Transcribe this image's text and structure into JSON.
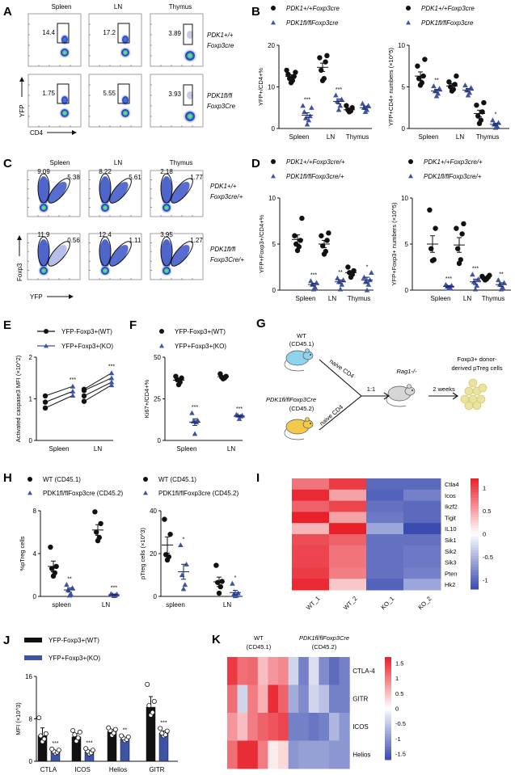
{
  "colors": {
    "wt": "#111111",
    "ko": "#3d54a6",
    "heat_high": "#e8202a",
    "heat_mid": "#ffffff",
    "heat_low": "#3b4cb0",
    "cell": "#e9e3a0",
    "mouse_wt": "#8fd3ec",
    "mouse_ko": "#f2c94a",
    "mouse_rag": "#d6d6d6"
  },
  "panels": {
    "A": {
      "letter": "A",
      "columns": [
        "Spleen",
        "LN",
        "Thymus"
      ],
      "rows": [
        {
          "genotype_line1": "PDK1+/+",
          "genotype_line2": "Foxp3cre",
          "values": [
            "14.4",
            "17.2",
            "3.89"
          ]
        },
        {
          "genotype_line1": "PDK1fl/fl",
          "genotype_line2": "Foxp3Cre",
          "values": [
            "1.75",
            "5.55",
            "3.93"
          ]
        }
      ],
      "xlabel": "CD4",
      "ylabel": "YFP"
    },
    "C": {
      "letter": "C",
      "columns": [
        "Spleen",
        "LN",
        "Thymus"
      ],
      "rows": [
        {
          "genotype_line1": "PDK1+/+",
          "genotype_line2": "Foxp3cre/+",
          "left": [
            "9.09",
            "8.22",
            "2.18"
          ],
          "right": [
            "5.38",
            "5.61",
            "1.77"
          ]
        },
        {
          "genotype_line1": "PDK1fl/fl",
          "genotype_line2": "Foxp3Cre/+",
          "left": [
            "11.9",
            "12.4",
            "3.95"
          ],
          "right": [
            "0.56",
            "1.11",
            "1.27"
          ]
        }
      ],
      "xlabel": "YFP",
      "ylabel": "Foxp3"
    },
    "G": {
      "letter": "G",
      "wt_label": "WT",
      "wt_sub": "(CD45.1)",
      "ko_label": "PDK1fl/flFoxp3Cre",
      "ko_sub": "(CD45.2)",
      "arrow_top": "naive CD4",
      "arrow_bottom": "naive CD4",
      "ratio": "1:1",
      "recipient": "Rag1-/-",
      "duration": "2 weeks",
      "outcome_line1": "Foxp3+ donor-",
      "outcome_line2": "derived pTreg cells"
    }
  },
  "chart_data": [
    {
      "id": "B1",
      "letter": "B",
      "type": "scatter",
      "legend": [
        "PDK1+/+Foxp3cre",
        "PDK1fl/flFoxp3cre"
      ],
      "ylabel": "YFP+/CD4+%",
      "ylim": [
        0,
        20
      ],
      "yticks": [
        0,
        10,
        20
      ],
      "categories": [
        "Spleen",
        "LN",
        "Thymus"
      ],
      "series": [
        {
          "name": "PDK1+/+Foxp3cre",
          "marker": "circle",
          "groups": [
            [
              11,
              11.5,
              12,
              12.5,
              13,
              13.5,
              14
            ],
            [
              11.5,
              12,
              14,
              16,
              17,
              17.5
            ],
            [
              4,
              4.2,
              4.5,
              5,
              5.5
            ]
          ],
          "means": [
            12.5,
            14.7,
            4.5
          ],
          "sems": [
            0.4,
            1.0,
            0.3
          ]
        },
        {
          "name": "PDK1fl/flFoxp3cre",
          "marker": "triangle",
          "groups": [
            [
              1,
              2,
              2.5,
              3,
              4,
              5,
              5.5
            ],
            [
              4.5,
              5.5,
              6.5,
              7,
              8
            ],
            [
              4,
              4.5,
              5,
              5.5,
              6
            ]
          ],
          "means": [
            3.2,
            6.5,
            5.0
          ],
          "sems": [
            0.6,
            0.6,
            0.4
          ]
        }
      ],
      "significance": [
        "***",
        "***",
        ""
      ]
    },
    {
      "id": "B2",
      "letter": "",
      "type": "scatter",
      "legend": [
        "PDK1+/+Foxp3cre",
        "PDK1fl/flFoxp3cre"
      ],
      "ylabel": "YFP+CD4+ numbers (×10^5)",
      "ylim": [
        0,
        10
      ],
      "yticks": [
        0,
        5,
        10
      ],
      "categories": [
        "Spleen",
        "LN",
        "Thymus"
      ],
      "series": [
        {
          "name": "PDK1+/+Foxp3cre",
          "marker": "circle",
          "groups": [
            [
              5.2,
              5.5,
              6,
              6.3,
              7.5,
              8.3
            ],
            [
              4.5,
              4.7,
              5,
              5.3,
              5.6,
              6.3
            ],
            [
              0.6,
              1,
              1.5,
              2,
              2.8,
              3.1
            ]
          ],
          "means": [
            6.3,
            5.1,
            1.8
          ],
          "sems": [
            0.5,
            0.3,
            0.4
          ]
        },
        {
          "name": "PDK1fl/flFoxp3cre",
          "marker": "triangle",
          "groups": [
            [
              3.9,
              4.2,
              4.5,
              4.8,
              5.1
            ],
            [
              4,
              4.3,
              4.6,
              4.9,
              5.2
            ],
            [
              0.1,
              0.3,
              0.5,
              0.7,
              1
            ]
          ],
          "means": [
            4.5,
            4.6,
            0.5
          ],
          "sems": [
            0.2,
            0.2,
            0.15
          ]
        }
      ],
      "significance": [
        "**",
        "",
        "*"
      ]
    },
    {
      "id": "D1",
      "letter": "D",
      "type": "scatter",
      "legend": [
        "PDK1+/+Foxp3cre/+",
        "PDK1fl/flFoxp3cre/+"
      ],
      "ylabel": "YFP+Foxp3+/CD4+%",
      "ylim": [
        0,
        10
      ],
      "yticks": [
        0,
        5,
        10
      ],
      "categories": [
        "Spleen",
        "LN",
        "Thymus"
      ],
      "series": [
        {
          "name": "PDK1+/+Foxp3cre/+",
          "marker": "circle",
          "groups": [
            [
              4.3,
              4.7,
              5,
              5.4,
              5.9,
              7.8
            ],
            [
              3.9,
              4.2,
              4.8,
              5.4,
              5.9,
              6.2
            ],
            [
              1.4,
              1.7,
              1.9,
              2.1,
              2.5
            ]
          ],
          "means": [
            5.5,
            5.0,
            1.9
          ],
          "sems": [
            0.5,
            0.4,
            0.2
          ]
        },
        {
          "name": "PDK1fl/flFoxp3cre/+",
          "marker": "triangle",
          "groups": [
            [
              0.1,
              0.3,
              0.6,
              0.8,
              1.0
            ],
            [
              0.1,
              0.6,
              0.9,
              1.1,
              1.3
            ],
            [
              0,
              0.6,
              0.9,
              1.1,
              1.4,
              1.9
            ]
          ],
          "means": [
            0.6,
            0.9,
            1.1
          ],
          "sems": [
            0.15,
            0.2,
            0.3
          ]
        }
      ],
      "significance": [
        "***",
        "**",
        "*"
      ]
    },
    {
      "id": "D2",
      "letter": "",
      "type": "scatter",
      "legend": [
        "PDK1+/+Foxp3cre/+",
        "PDK1fl/flFoxp3cre/+"
      ],
      "ylabel": "YFP+Foxp3+ numbers (×10^5)",
      "ylim": [
        0,
        10
      ],
      "yticks": [
        0,
        5,
        10
      ],
      "categories": [
        "Spleen",
        "LN",
        "Thymus"
      ],
      "series": [
        {
          "name": "PDK1+/+Foxp3cre/+",
          "marker": "circle",
          "groups": [
            [
              3.2,
              3.3,
              4.5,
              6.7,
              8.7
            ],
            [
              2.9,
              3.3,
              4.5,
              6.1,
              6.7,
              7.2
            ],
            [
              1.1,
              1.2,
              1.3,
              1.4,
              1.5,
              1.6
            ]
          ],
          "means": [
            5.0,
            4.9,
            1.3
          ],
          "sems": [
            0.9,
            0.8,
            0.1
          ]
        },
        {
          "name": "PDK1fl/flFoxp3cre/+",
          "marker": "triangle",
          "groups": [
            [
              0.2,
              0.3,
              0.4,
              0.5,
              0.6
            ],
            [
              0.1,
              0.5,
              0.9,
              1.2,
              1.7
            ],
            [
              0.1,
              0.3,
              0.6,
              0.8,
              1.1
            ]
          ],
          "means": [
            0.4,
            0.9,
            0.6
          ],
          "sems": [
            0.1,
            0.3,
            0.2
          ]
        }
      ],
      "significance": [
        "***",
        "***",
        "**"
      ]
    },
    {
      "id": "E",
      "letter": "E",
      "type": "line",
      "legend": [
        "YFP-Foxp3+(WT)",
        "YFP+Foxp3+(KO)"
      ],
      "ylabel": "Activated caspase3 MFI (×10^2)",
      "ylim": [
        0,
        2
      ],
      "yticks": [
        0,
        1,
        2
      ],
      "categories": [
        "Spleen",
        "LN"
      ],
      "pairs": [
        [
          [
            1.07,
            1.3
          ],
          [
            0.92,
            1.18
          ],
          [
            0.78,
            1.08
          ]
        ],
        [
          [
            1.23,
            1.62
          ],
          [
            1.2,
            1.5
          ],
          [
            1.07,
            1.4
          ],
          [
            0.94,
            1.33
          ]
        ]
      ],
      "significance": [
        "***",
        "***"
      ]
    },
    {
      "id": "F",
      "letter": "F",
      "type": "scatter",
      "legend": [
        "YFP-Foxp3+(WT)",
        "YFP+Foxp3+(KO)"
      ],
      "ylabel": "Ki67+/CD4+%",
      "ylim": [
        0,
        50
      ],
      "yticks": [
        0,
        25,
        50
      ],
      "categories": [
        "Spleen",
        "LN"
      ],
      "series": [
        {
          "name": "YFP-Foxp3+(WT)",
          "marker": "circle",
          "groups": [
            [
              33.5,
              35,
              36.5,
              37.5,
              38.5
            ],
            [
              37,
              37.5,
              38,
              38.5,
              40
            ]
          ],
          "means": [
            36.2,
            38.3
          ],
          "sems": [
            0.9,
            0.5
          ]
        },
        {
          "name": "YFP+Foxp3+(KO)",
          "marker": "triangle",
          "groups": [
            [
              4,
              11,
              11.5,
              12,
              16.5
            ],
            [
              13,
              14.5,
              15,
              15,
              15.5
            ]
          ],
          "means": [
            11.0,
            14.6
          ],
          "sems": [
            2.0,
            0.5
          ]
        }
      ],
      "significance": [
        "***",
        "***"
      ]
    },
    {
      "id": "H1",
      "letter": "H",
      "type": "scatter",
      "legend": [
        "WT (CD45.1)",
        "PDK1fl/flFoxp3cre (CD45.2)"
      ],
      "ylabel": "%pTreg cells",
      "ylim": [
        0,
        8
      ],
      "yticks": [
        0,
        4,
        8
      ],
      "categories": [
        "spleen",
        "LN"
      ],
      "series": [
        {
          "name": "WT (CD45.1)",
          "marker": "circle",
          "groups": [
            [
              1.9,
              2.2,
              2.6,
              2.8,
              4.6
            ],
            [
              5.2,
              5.5,
              6.0,
              6.8,
              7.9
            ]
          ],
          "means": [
            2.8,
            6.2
          ],
          "sems": [
            0.5,
            0.5
          ]
        },
        {
          "name": "PDK1fl/flFoxp3cre (CD45.2)",
          "marker": "triangle",
          "groups": [
            [
              0.1,
              0.2,
              0.6,
              0.8,
              1.1
            ],
            [
              0.05,
              0.1,
              0.15,
              0.2,
              0.25
            ]
          ],
          "means": [
            0.6,
            0.15
          ],
          "sems": [
            0.2,
            0.05
          ]
        }
      ],
      "significance": [
        "**",
        "***"
      ]
    },
    {
      "id": "H2",
      "letter": "",
      "type": "scatter",
      "legend": [
        "WT (CD45.1)",
        "PDK1fl/flFoxp3cre (CD45.2)"
      ],
      "ylabel": "pTreg cells (×10^3)",
      "ylim": [
        0,
        40
      ],
      "yticks": [
        0,
        20,
        40
      ],
      "categories": [
        "spleen",
        "LN"
      ],
      "series": [
        {
          "name": "WT (CD45.1)",
          "marker": "circle",
          "groups": [
            [
              17,
              18.5,
              19.5,
              29,
              36
            ],
            [
              1.5,
              4.5,
              6.5,
              7,
              14.5
            ]
          ],
          "means": [
            24,
            6.8
          ],
          "sems": [
            3.8,
            2.2
          ]
        },
        {
          "name": "PDK1fl/flFoxp3cre (CD45.2)",
          "marker": "triangle",
          "groups": [
            [
              3.5,
              5.5,
              10,
              15,
              24
            ],
            [
              0.2,
              0.5,
              1,
              1.5,
              6
            ]
          ],
          "means": [
            11.5,
            1.8
          ],
          "sems": [
            3.5,
            1.0
          ]
        }
      ],
      "significance": [
        "*",
        "*"
      ]
    },
    {
      "id": "I",
      "letter": "I",
      "type": "heatmap",
      "rows": [
        "Ctla4",
        "Icos",
        "Ikzf2",
        "Tigit",
        "IL10",
        "Sik1",
        "Sik2",
        "Sik3",
        "Pten",
        "Hk2"
      ],
      "columns": [
        "WT_1",
        "WT_2",
        "KO_1",
        "KO_2"
      ],
      "values": [
        [
          0.75,
          1.05,
          -1.0,
          -1.0
        ],
        [
          1.15,
          0.5,
          -1.05,
          -0.85
        ],
        [
          0.85,
          1.0,
          -0.95,
          -1.0
        ],
        [
          1.2,
          0.5,
          -0.9,
          -1.0
        ],
        [
          0.4,
          1.25,
          -0.6,
          -1.2
        ],
        [
          0.95,
          0.85,
          -0.95,
          -0.95
        ],
        [
          1.0,
          0.75,
          -0.95,
          -0.9
        ],
        [
          1.0,
          0.75,
          -0.95,
          -0.9
        ],
        [
          1.05,
          0.7,
          -0.95,
          -0.85
        ],
        [
          1.15,
          0.3,
          -1.05,
          -0.6
        ]
      ],
      "scale_ticks": [
        1,
        0.5,
        0,
        -0.5,
        -1
      ],
      "range": [
        -1.2,
        1.2
      ]
    },
    {
      "id": "J",
      "letter": "J",
      "type": "bar",
      "legend": [
        "YFP-Foxp3+(WT)",
        "YFP+Foxp3+(KO)"
      ],
      "ylabel": "MFI (×10^3)",
      "ylim": [
        0,
        16
      ],
      "yticks": [
        0,
        8,
        16
      ],
      "categories": [
        "CTLA",
        "ICOS",
        "Helios",
        "GITR"
      ],
      "series": [
        {
          "name": "YFP-Foxp3+(WT)",
          "values": [
            4.8,
            4.6,
            5.6,
            10.2
          ],
          "errors": [
            1.5,
            0.6,
            0.4,
            2.0
          ],
          "points": [
            [
              3.7,
              4.2,
              4.8,
              5.2,
              8.2
            ],
            [
              3.8,
              4.4,
              5.0,
              5.5,
              5.8
            ],
            [
              4.9,
              5.3,
              5.8,
              6.0,
              6.3
            ],
            [
              8.7,
              9.2,
              10.5,
              11.3,
              14.5
            ]
          ]
        },
        {
          "name": "YFP+Foxp3+(KO)",
          "values": [
            1.8,
            1.8,
            4.2,
            5.3
          ],
          "errors": [
            0.2,
            0.2,
            0.2,
            0.4
          ],
          "points": [
            [
              1.5,
              1.7,
              1.9,
              2.1,
              2.3
            ],
            [
              1.4,
              1.6,
              1.9,
              2.1,
              2.4
            ],
            [
              3.9,
              4.1,
              4.4,
              4.6,
              4.8
            ],
            [
              4.8,
              5.0,
              5.3,
              5.7,
              6.2
            ]
          ]
        }
      ],
      "significance": [
        "***",
        "***",
        "**",
        "***"
      ]
    },
    {
      "id": "K",
      "letter": "K",
      "type": "heatmap",
      "group_labels": [
        {
          "line1": "WT",
          "line2": "(CD45.1)"
        },
        {
          "line1": "PDK1fl/flFoxp3Cre",
          "line2": "(CD45.2)"
        }
      ],
      "rows": [
        "CTLA-4",
        "GITR",
        "ICOS",
        "Helios"
      ],
      "n_columns": 12,
      "values": [
        [
          1.5,
          1.1,
          1.15,
          0.5,
          0.8,
          0.9,
          -0.4,
          -1.2,
          -0.3,
          -1.1,
          -1.4,
          -1.2
        ],
        [
          1.1,
          -0.4,
          1.0,
          0.6,
          1.6,
          1.2,
          -0.8,
          -1.1,
          -0.4,
          -0.6,
          -1.2,
          -1.2
        ],
        [
          0.8,
          0.5,
          1.0,
          1.2,
          1.3,
          1.4,
          -1.2,
          -1.2,
          -1.3,
          -1.2,
          -0.7,
          -1.0
        ],
        [
          1.1,
          1.6,
          1.6,
          1.0,
          0.15,
          0.3,
          -1.0,
          -0.9,
          -0.9,
          -0.9,
          -1.0,
          -1.0
        ]
      ],
      "scale_ticks": [
        1.5,
        1,
        0.5,
        0,
        -0.5,
        -1,
        -1.5
      ],
      "range": [
        -1.7,
        1.7
      ]
    }
  ]
}
